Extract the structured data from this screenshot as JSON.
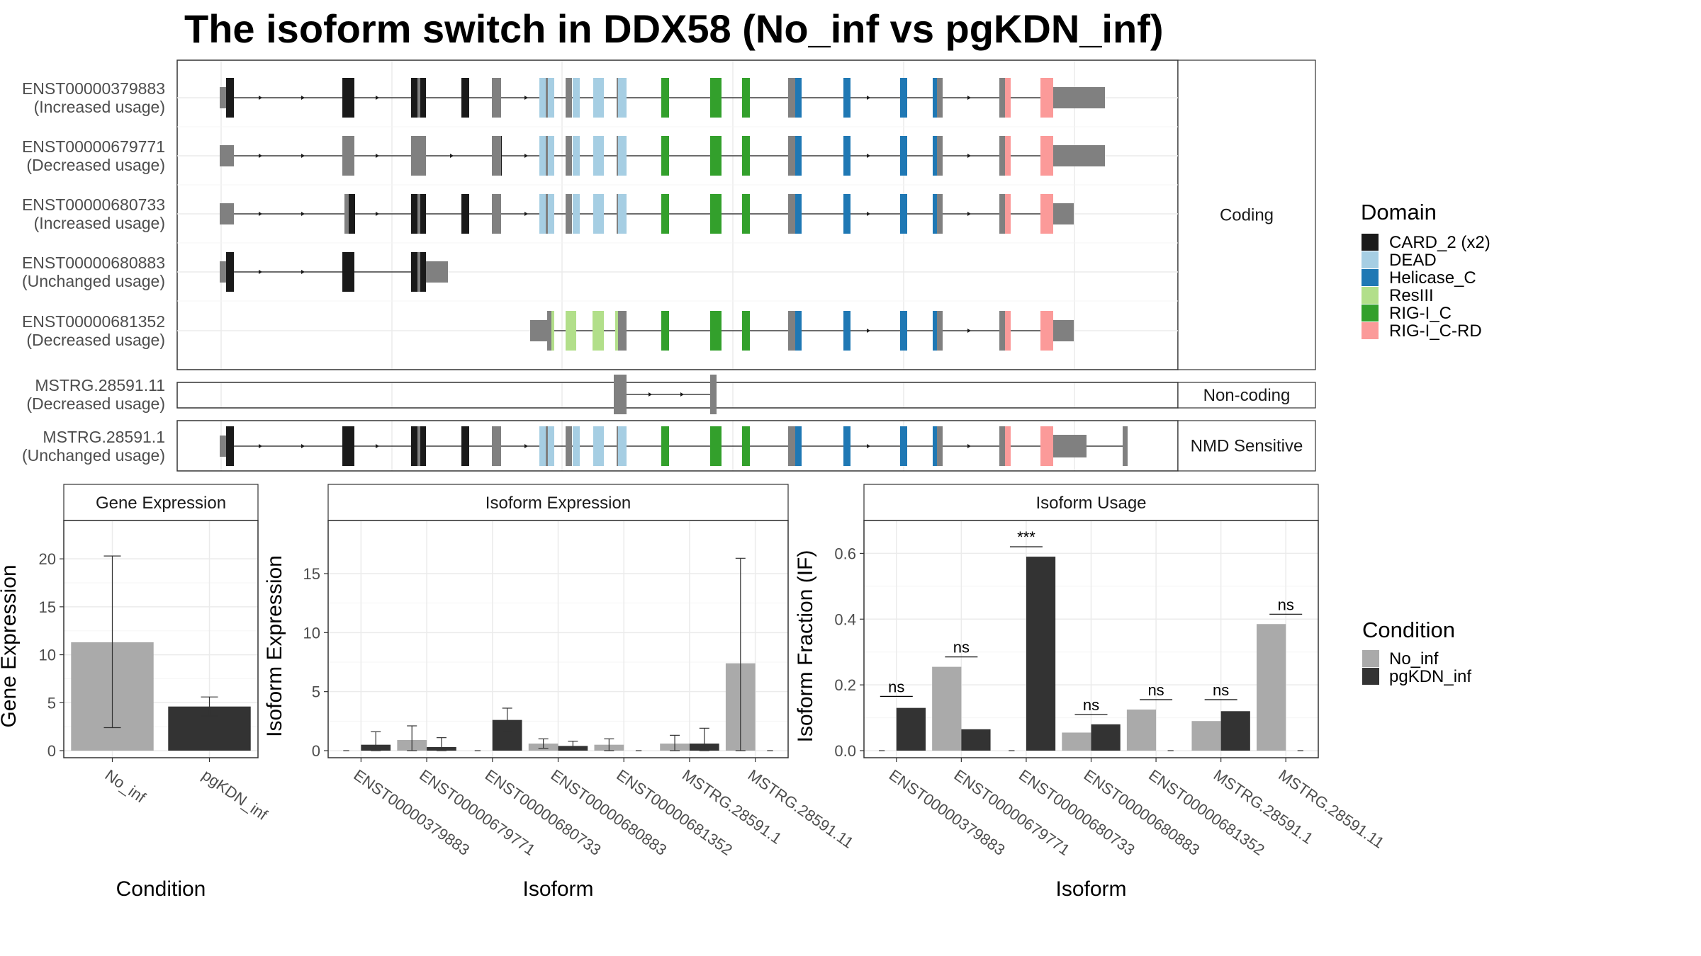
{
  "chart_data": {
    "title": "The isoform switch in DDX58 (No_inf vs pgKDN_inf)",
    "transcript_structure": {
      "type": "gene-structure",
      "domain_legend_title": "Domain",
      "domains": [
        {
          "name": "CARD_2 (x2)",
          "color": "#1a1a1a"
        },
        {
          "name": "DEAD",
          "color": "#a6cee3"
        },
        {
          "name": "Helicase_C",
          "color": "#1f78b4"
        },
        {
          "name": "ResIII",
          "color": "#b2df8a"
        },
        {
          "name": "RIG-I_C",
          "color": "#33a02c"
        },
        {
          "name": "RIG-I_C-RD",
          "color": "#fb9a99"
        }
      ],
      "groups": [
        {
          "label": "Coding",
          "isoforms": [
            {
              "id": "ENST00000379883",
              "usage": "(Increased usage)"
            },
            {
              "id": "ENST00000679771",
              "usage": "(Decreased usage)"
            },
            {
              "id": "ENST00000680733",
              "usage": "(Increased usage)"
            },
            {
              "id": "ENST00000680883",
              "usage": "(Unchanged usage)"
            },
            {
              "id": "ENST00000681352",
              "usage": "(Decreased usage)"
            }
          ]
        },
        {
          "label": "Non-coding",
          "isoforms": [
            {
              "id": "MSTRG.28591.11",
              "usage": "(Decreased usage)"
            }
          ]
        },
        {
          "label": "NMD Sensitive",
          "isoforms": [
            {
              "id": "MSTRG.28591.1",
              "usage": "(Unchanged usage)"
            }
          ]
        }
      ]
    },
    "condition_legend": {
      "title": "Condition",
      "items": [
        {
          "name": "No_inf",
          "color": "#aaaaaa"
        },
        {
          "name": "pgKDN_inf",
          "color": "#333333"
        }
      ]
    },
    "panels": [
      {
        "type": "bar",
        "strip": "Gene Expression",
        "xlabel": "Condition",
        "ylabel": "Gene Expression",
        "ylim": [
          0,
          24
        ],
        "yticks": [
          0,
          5,
          10,
          15,
          20
        ],
        "categories": [
          "No_inf",
          "pgKDN_inf"
        ],
        "values": [
          11.3,
          4.6
        ],
        "error_low": [
          2.4,
          3.6
        ],
        "error_high": [
          20.3,
          5.6
        ],
        "colors": [
          "#aaaaaa",
          "#333333"
        ]
      },
      {
        "type": "bar",
        "strip": "Isoform Expression",
        "xlabel": "Isoform",
        "ylabel": "Isoform Expression",
        "ylim": [
          0,
          19.5
        ],
        "yticks": [
          0,
          5,
          10,
          15
        ],
        "categories": [
          "ENST00000379883",
          "ENST00000679771",
          "ENST00000680733",
          "ENST00000680883",
          "ENST00000681352",
          "MSTRG.28591.1",
          "MSTRG.28591.11"
        ],
        "series": [
          {
            "name": "No_inf",
            "values": [
              0,
              0.9,
              0,
              0.6,
              0.5,
              0.6,
              7.4
            ],
            "error_low": [
              0,
              0,
              0,
              0.2,
              0,
              0,
              0
            ],
            "error_high": [
              0,
              2.1,
              0,
              1.0,
              1.0,
              1.3,
              16.3
            ]
          },
          {
            "name": "pgKDN_inf",
            "values": [
              0.5,
              0.3,
              2.6,
              0.4,
              0,
              0.6,
              0
            ],
            "error_low": [
              0,
              0,
              1.6,
              0.1,
              0,
              0,
              0
            ],
            "error_high": [
              1.6,
              1.1,
              3.6,
              0.8,
              0,
              1.9,
              0
            ]
          }
        ]
      },
      {
        "type": "bar",
        "strip": "Isoform Usage",
        "xlabel": "Isoform",
        "ylabel": "Isoform Fraction (IF)",
        "ylim": [
          0,
          0.7
        ],
        "yticks": [
          0.0,
          0.2,
          0.4,
          0.6
        ],
        "ytick_labels": [
          "0.0",
          "0.2",
          "0.4",
          "0.6"
        ],
        "categories": [
          "ENST00000379883",
          "ENST00000679771",
          "ENST00000680733",
          "ENST00000680883",
          "ENST00000681352",
          "MSTRG.28591.1",
          "MSTRG.28591.11"
        ],
        "series": [
          {
            "name": "No_inf",
            "values": [
              0,
              0.255,
              0,
              0.055,
              0.125,
              0.09,
              0.385
            ]
          },
          {
            "name": "pgKDN_inf",
            "values": [
              0.13,
              0.065,
              0.59,
              0.08,
              0,
              0.12,
              0
            ]
          }
        ],
        "significance": [
          "ns",
          "ns",
          "***",
          "ns",
          "ns",
          "ns",
          "ns"
        ],
        "significance_y": [
          0.165,
          0.285,
          0.62,
          0.11,
          0.155,
          0.155,
          0.415
        ]
      }
    ]
  }
}
